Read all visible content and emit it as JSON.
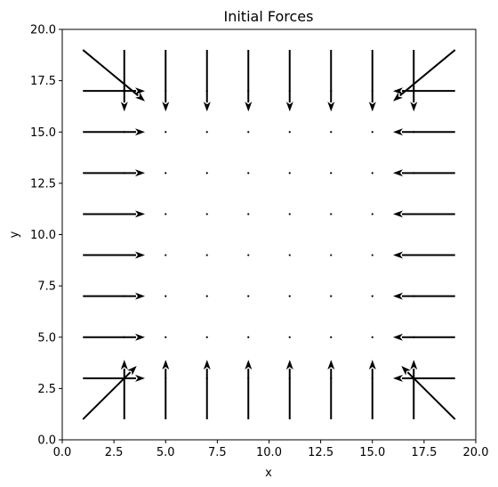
{
  "chart_data": {
    "type": "quiver",
    "title": "Initial Forces",
    "xlabel": "x",
    "ylabel": "y",
    "xlim": [
      0,
      20
    ],
    "ylim": [
      0,
      20
    ],
    "xticks": [
      "0.0",
      "2.5",
      "5.0",
      "7.5",
      "10.0",
      "12.5",
      "15.0",
      "17.5",
      "20.0"
    ],
    "yticks": [
      "0.0",
      "2.5",
      "5.0",
      "7.5",
      "10.0",
      "12.5",
      "15.0",
      "17.5",
      "20.0"
    ],
    "grid": false,
    "legend": false,
    "color": "#000000",
    "vectors": [
      {
        "x": 1,
        "y": 19,
        "u": 3,
        "v": -2.5
      },
      {
        "x": 3,
        "y": 19,
        "u": 0,
        "v": -3
      },
      {
        "x": 5,
        "y": 19,
        "u": 0,
        "v": -3
      },
      {
        "x": 7,
        "y": 19,
        "u": 0,
        "v": -3
      },
      {
        "x": 9,
        "y": 19,
        "u": 0,
        "v": -3
      },
      {
        "x": 11,
        "y": 19,
        "u": 0,
        "v": -3
      },
      {
        "x": 13,
        "y": 19,
        "u": 0,
        "v": -3
      },
      {
        "x": 15,
        "y": 19,
        "u": 0,
        "v": -3
      },
      {
        "x": 17,
        "y": 19,
        "u": 0,
        "v": -3
      },
      {
        "x": 19,
        "y": 19,
        "u": -3,
        "v": -2.5
      },
      {
        "x": 1,
        "y": 17,
        "u": 3,
        "v": 0
      },
      {
        "x": 3,
        "y": 17,
        "u": 0,
        "v": 0
      },
      {
        "x": 5,
        "y": 17,
        "u": 0,
        "v": 0
      },
      {
        "x": 7,
        "y": 17,
        "u": 0,
        "v": 0
      },
      {
        "x": 9,
        "y": 17,
        "u": 0,
        "v": 0
      },
      {
        "x": 11,
        "y": 17,
        "u": 0,
        "v": 0
      },
      {
        "x": 13,
        "y": 17,
        "u": 0,
        "v": 0
      },
      {
        "x": 15,
        "y": 17,
        "u": 0,
        "v": 0
      },
      {
        "x": 17,
        "y": 17,
        "u": 0,
        "v": 0
      },
      {
        "x": 19,
        "y": 17,
        "u": -3,
        "v": 0
      },
      {
        "x": 1,
        "y": 15,
        "u": 3,
        "v": 0
      },
      {
        "x": 3,
        "y": 15,
        "u": 0,
        "v": 0
      },
      {
        "x": 5,
        "y": 15,
        "u": 0,
        "v": 0
      },
      {
        "x": 7,
        "y": 15,
        "u": 0,
        "v": 0
      },
      {
        "x": 9,
        "y": 15,
        "u": 0,
        "v": 0
      },
      {
        "x": 11,
        "y": 15,
        "u": 0,
        "v": 0
      },
      {
        "x": 13,
        "y": 15,
        "u": 0,
        "v": 0
      },
      {
        "x": 15,
        "y": 15,
        "u": 0,
        "v": 0
      },
      {
        "x": 17,
        "y": 15,
        "u": 0,
        "v": 0
      },
      {
        "x": 19,
        "y": 15,
        "u": -3,
        "v": 0
      },
      {
        "x": 1,
        "y": 13,
        "u": 3,
        "v": 0
      },
      {
        "x": 3,
        "y": 13,
        "u": 0,
        "v": 0
      },
      {
        "x": 5,
        "y": 13,
        "u": 0,
        "v": 0
      },
      {
        "x": 7,
        "y": 13,
        "u": 0,
        "v": 0
      },
      {
        "x": 9,
        "y": 13,
        "u": 0,
        "v": 0
      },
      {
        "x": 11,
        "y": 13,
        "u": 0,
        "v": 0
      },
      {
        "x": 13,
        "y": 13,
        "u": 0,
        "v": 0
      },
      {
        "x": 15,
        "y": 13,
        "u": 0,
        "v": 0
      },
      {
        "x": 17,
        "y": 13,
        "u": 0,
        "v": 0
      },
      {
        "x": 19,
        "y": 13,
        "u": -3,
        "v": 0
      },
      {
        "x": 1,
        "y": 11,
        "u": 3,
        "v": 0
      },
      {
        "x": 3,
        "y": 11,
        "u": 0,
        "v": 0
      },
      {
        "x": 5,
        "y": 11,
        "u": 0,
        "v": 0
      },
      {
        "x": 7,
        "y": 11,
        "u": 0,
        "v": 0
      },
      {
        "x": 9,
        "y": 11,
        "u": 0,
        "v": 0
      },
      {
        "x": 11,
        "y": 11,
        "u": 0,
        "v": 0
      },
      {
        "x": 13,
        "y": 11,
        "u": 0,
        "v": 0
      },
      {
        "x": 15,
        "y": 11,
        "u": 0,
        "v": 0
      },
      {
        "x": 17,
        "y": 11,
        "u": 0,
        "v": 0
      },
      {
        "x": 19,
        "y": 11,
        "u": -3,
        "v": 0
      },
      {
        "x": 1,
        "y": 9,
        "u": 3,
        "v": 0
      },
      {
        "x": 3,
        "y": 9,
        "u": 0,
        "v": 0
      },
      {
        "x": 5,
        "y": 9,
        "u": 0,
        "v": 0
      },
      {
        "x": 7,
        "y": 9,
        "u": 0,
        "v": 0
      },
      {
        "x": 9,
        "y": 9,
        "u": 0,
        "v": 0
      },
      {
        "x": 11,
        "y": 9,
        "u": 0,
        "v": 0
      },
      {
        "x": 13,
        "y": 9,
        "u": 0,
        "v": 0
      },
      {
        "x": 15,
        "y": 9,
        "u": 0,
        "v": 0
      },
      {
        "x": 17,
        "y": 9,
        "u": 0,
        "v": 0
      },
      {
        "x": 19,
        "y": 9,
        "u": -3,
        "v": 0
      },
      {
        "x": 1,
        "y": 7,
        "u": 3,
        "v": 0
      },
      {
        "x": 3,
        "y": 7,
        "u": 0,
        "v": 0
      },
      {
        "x": 5,
        "y": 7,
        "u": 0,
        "v": 0
      },
      {
        "x": 7,
        "y": 7,
        "u": 0,
        "v": 0
      },
      {
        "x": 9,
        "y": 7,
        "u": 0,
        "v": 0
      },
      {
        "x": 11,
        "y": 7,
        "u": 0,
        "v": 0
      },
      {
        "x": 13,
        "y": 7,
        "u": 0,
        "v": 0
      },
      {
        "x": 15,
        "y": 7,
        "u": 0,
        "v": 0
      },
      {
        "x": 17,
        "y": 7,
        "u": 0,
        "v": 0
      },
      {
        "x": 19,
        "y": 7,
        "u": -3,
        "v": 0
      },
      {
        "x": 1,
        "y": 5,
        "u": 3,
        "v": 0
      },
      {
        "x": 3,
        "y": 5,
        "u": 0,
        "v": 0
      },
      {
        "x": 5,
        "y": 5,
        "u": 0,
        "v": 0
      },
      {
        "x": 7,
        "y": 5,
        "u": 0,
        "v": 0
      },
      {
        "x": 9,
        "y": 5,
        "u": 0,
        "v": 0
      },
      {
        "x": 11,
        "y": 5,
        "u": 0,
        "v": 0
      },
      {
        "x": 13,
        "y": 5,
        "u": 0,
        "v": 0
      },
      {
        "x": 15,
        "y": 5,
        "u": 0,
        "v": 0
      },
      {
        "x": 17,
        "y": 5,
        "u": 0,
        "v": 0
      },
      {
        "x": 19,
        "y": 5,
        "u": -3,
        "v": 0
      },
      {
        "x": 1,
        "y": 3,
        "u": 3,
        "v": 0
      },
      {
        "x": 3,
        "y": 3,
        "u": 0,
        "v": 0
      },
      {
        "x": 5,
        "y": 3,
        "u": 0,
        "v": 0
      },
      {
        "x": 7,
        "y": 3,
        "u": 0,
        "v": 0
      },
      {
        "x": 9,
        "y": 3,
        "u": 0,
        "v": 0
      },
      {
        "x": 11,
        "y": 3,
        "u": 0,
        "v": 0
      },
      {
        "x": 13,
        "y": 3,
        "u": 0,
        "v": 0
      },
      {
        "x": 15,
        "y": 3,
        "u": 0,
        "v": 0
      },
      {
        "x": 17,
        "y": 3,
        "u": 0,
        "v": 0
      },
      {
        "x": 19,
        "y": 3,
        "u": -3,
        "v": 0
      },
      {
        "x": 1,
        "y": 1,
        "u": 2.6,
        "v": 2.6
      },
      {
        "x": 3,
        "y": 1,
        "u": 0,
        "v": 2.9
      },
      {
        "x": 5,
        "y": 1,
        "u": 0,
        "v": 2.9
      },
      {
        "x": 7,
        "y": 1,
        "u": 0,
        "v": 2.9
      },
      {
        "x": 9,
        "y": 1,
        "u": 0,
        "v": 2.9
      },
      {
        "x": 11,
        "y": 1,
        "u": 0,
        "v": 2.9
      },
      {
        "x": 13,
        "y": 1,
        "u": 0,
        "v": 2.9
      },
      {
        "x": 15,
        "y": 1,
        "u": 0,
        "v": 2.9
      },
      {
        "x": 17,
        "y": 1,
        "u": 0,
        "v": 2.9
      },
      {
        "x": 19,
        "y": 1,
        "u": -2.6,
        "v": 2.6
      }
    ]
  }
}
